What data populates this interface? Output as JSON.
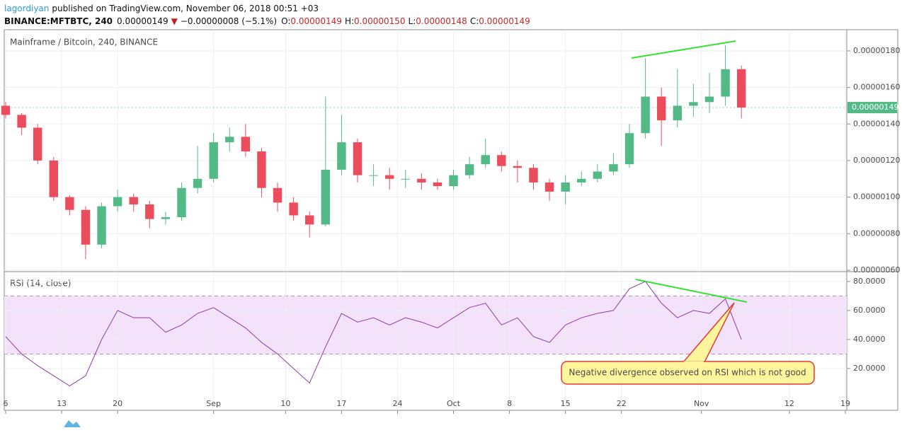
{
  "header": {
    "author": "lagordiyan",
    "published": "published on TradingView.com, November 06, 2018 00:51 +03",
    "symbol": "BINANCE:MFTBTC, 240",
    "price": "0.00000149",
    "change": "−0.00000008 (−5.1%)",
    "ohlc": [
      {
        "label": "O:",
        "value": "0.00000149"
      },
      {
        "label": "H:",
        "value": "0.00000150"
      },
      {
        "label": "L:",
        "value": "0.00000148"
      },
      {
        "label": "C:",
        "value": "0.00000149"
      }
    ]
  },
  "chart_data": [
    {
      "type": "candlestick",
      "title": "Mainframe / Bitcoin, 240, BINANCE",
      "x": [
        0,
        2,
        4,
        6,
        8,
        10,
        12,
        14,
        16,
        18,
        20,
        22,
        24,
        26,
        28,
        30,
        32,
        34,
        36,
        38,
        40,
        42,
        44,
        46,
        48,
        50,
        52,
        54,
        56,
        58,
        60,
        62,
        64,
        66,
        68,
        70,
        72,
        74,
        76,
        78,
        80,
        82,
        84,
        86,
        88,
        90,
        92
      ],
      "open": [
        1.5e-06,
        1.45e-06,
        1.38e-06,
        1.2e-06,
        1e-06,
        9.3e-07,
        7.4e-07,
        9.5e-07,
        1e-06,
        9.6e-07,
        8.8e-07,
        8.9e-07,
        1.05e-06,
        1.1e-06,
        1.3e-06,
        1.33e-06,
        1.25e-06,
        1.05e-06,
        9.7e-07,
        9e-07,
        8.5e-07,
        1.15e-06,
        1.3e-06,
        1.12e-06,
        1.12e-06,
        1.1e-06,
        1.1e-06,
        1.08e-06,
        1.06e-06,
        1.12e-06,
        1.18e-06,
        1.23e-06,
        1.17e-06,
        1.16e-06,
        1.08e-06,
        1.03e-06,
        1.08e-06,
        1.1e-06,
        1.14e-06,
        1.18e-06,
        1.35e-06,
        1.55e-06,
        1.42e-06,
        1.5e-06,
        1.52e-06,
        1.55e-06,
        1.7e-06
      ],
      "high": [
        1.52e-06,
        1.46e-06,
        1.4e-06,
        1.22e-06,
        1.01e-06,
        9.5e-07,
        9.7e-07,
        1.04e-06,
        1.02e-06,
        9.8e-07,
        9.2e-07,
        1.08e-06,
        1.28e-06,
        1.35e-06,
        1.38e-06,
        1.4e-06,
        1.27e-06,
        1.08e-06,
        1e-06,
        9.2e-07,
        1.55e-06,
        1.45e-06,
        1.32e-06,
        1.18e-06,
        1.16e-06,
        1.15e-06,
        1.13e-06,
        1.1e-06,
        1.15e-06,
        1.22e-06,
        1.32e-06,
        1.25e-06,
        1.2e-06,
        1.18e-06,
        1.1e-06,
        1.12e-06,
        1.14e-06,
        1.18e-06,
        1.24e-06,
        1.4e-06,
        1.76e-06,
        1.6e-06,
        1.7e-06,
        1.62e-06,
        1.68e-06,
        1.83e-06,
        1.72e-06
      ],
      "low": [
        1.43e-06,
        1.34e-06,
        1.18e-06,
        9.8e-07,
        9e-07,
        6.6e-07,
        7.2e-07,
        9.2e-07,
        9.2e-07,
        8.3e-07,
        8.5e-07,
        8.7e-07,
        1.02e-06,
        1.08e-06,
        1.25e-06,
        1.22e-06,
        1e-06,
        9.2e-07,
        8.7e-07,
        7.8e-07,
        8.4e-07,
        1.12e-06,
        1.08e-06,
        1.06e-06,
        1.04e-06,
        1.05e-06,
        1.04e-06,
        1.04e-06,
        1.04e-06,
        1.1e-06,
        1.16e-06,
        1.14e-06,
        1.08e-06,
        1.04e-06,
        9.8e-07,
        9.6e-07,
        1.06e-06,
        1.08e-06,
        1.12e-06,
        1.16e-06,
        1.32e-06,
        1.28e-06,
        1.38e-06,
        1.44e-06,
        1.46e-06,
        1.5e-06,
        1.43e-06
      ],
      "close": [
        1.45e-06,
        1.38e-06,
        1.2e-06,
        1e-06,
        9.3e-07,
        7.4e-07,
        9.5e-07,
        1e-06,
        9.6e-07,
        8.8e-07,
        8.9e-07,
        1.05e-06,
        1.1e-06,
        1.3e-06,
        1.33e-06,
        1.25e-06,
        1.05e-06,
        9.7e-07,
        9e-07,
        8.5e-07,
        1.15e-06,
        1.3e-06,
        1.12e-06,
        1.12e-06,
        1.1e-06,
        1.1e-06,
        1.08e-06,
        1.06e-06,
        1.12e-06,
        1.18e-06,
        1.23e-06,
        1.17e-06,
        1.16e-06,
        1.08e-06,
        1.03e-06,
        1.08e-06,
        1.1e-06,
        1.14e-06,
        1.18e-06,
        1.35e-06,
        1.55e-06,
        1.42e-06,
        1.5e-06,
        1.52e-06,
        1.55e-06,
        1.7e-06,
        1.49e-06
      ],
      "last_label": "0.00000149",
      "up_color": "#53b987",
      "down_color": "#eb4d5c",
      "last_color": "#53b987",
      "xlim": [
        0,
        105
      ],
      "ylim": [
        5.96e-07,
        1.916e-06
      ],
      "yticks": [
        {
          "value": 6e-07,
          "label": "0.00000060"
        },
        {
          "value": 8e-07,
          "label": "0.00000080"
        },
        {
          "value": 1e-06,
          "label": "0.00000100"
        },
        {
          "value": 1.2e-06,
          "label": "0.00000120"
        },
        {
          "value": 1.4e-06,
          "label": "0.00000140"
        },
        {
          "value": 1.6e-06,
          "label": "0.00000160"
        },
        {
          "value": 1.8e-06,
          "label": "0.00000180"
        }
      ],
      "grid": true
    },
    {
      "type": "line",
      "title": "RSI (14, close)",
      "x": [
        0,
        2,
        4,
        6,
        8,
        10,
        12,
        14,
        16,
        18,
        20,
        22,
        24,
        26,
        28,
        30,
        32,
        34,
        36,
        38,
        40,
        42,
        44,
        46,
        48,
        50,
        52,
        54,
        56,
        58,
        60,
        62,
        64,
        66,
        68,
        70,
        72,
        74,
        76,
        78,
        80,
        82,
        84,
        86,
        88,
        90,
        92
      ],
      "values": [
        42,
        30,
        22,
        15,
        8,
        15,
        40,
        60,
        55,
        55,
        45,
        50,
        58,
        62,
        55,
        48,
        38,
        30,
        20,
        10,
        35,
        58,
        52,
        55,
        50,
        55,
        52,
        48,
        55,
        62,
        65,
        50,
        55,
        42,
        38,
        50,
        55,
        58,
        60,
        75,
        80,
        65,
        55,
        60,
        58,
        68,
        40
      ],
      "color": "#8e3aa8",
      "overbought": 70,
      "oversold": 30,
      "band_color": "#f3e2fa",
      "xlim": [
        0,
        105
      ],
      "ylim": [
        -8.8,
        86.3
      ],
      "yticks": [
        {
          "value": 20,
          "label": "20.0000"
        },
        {
          "value": 40,
          "label": "40.0000"
        },
        {
          "value": 60,
          "label": "60.0000"
        },
        {
          "value": 80,
          "label": "80.0000"
        }
      ],
      "xticks": [
        {
          "value": 0,
          "label": "6"
        },
        {
          "value": 7,
          "label": "13"
        },
        {
          "value": 14,
          "label": "20"
        },
        {
          "value": 26,
          "label": "Sep"
        },
        {
          "value": 35,
          "label": "10"
        },
        {
          "value": 42,
          "label": "17"
        },
        {
          "value": 49,
          "label": "24"
        },
        {
          "value": 56,
          "label": "Oct"
        },
        {
          "value": 63,
          "label": "8"
        },
        {
          "value": 70,
          "label": "15"
        },
        {
          "value": 77,
          "label": "22"
        },
        {
          "value": 87,
          "label": "Nov"
        },
        {
          "value": 98,
          "label": "12"
        },
        {
          "value": 105,
          "label": "19"
        }
      ],
      "annotation": "Negative divergence observed on RSI which is not good",
      "grid": true
    }
  ]
}
